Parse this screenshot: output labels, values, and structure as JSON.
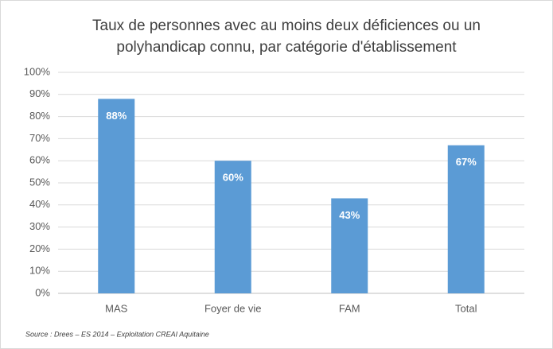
{
  "chart_data": {
    "type": "bar",
    "title": [
      "Taux de personnes avec au moins deux déficiences ou un",
      "polyhandicap connu, par catégorie d'établissement"
    ],
    "categories": [
      "MAS",
      "Foyer de vie",
      "FAM",
      "Total"
    ],
    "values": [
      88,
      60,
      43,
      67
    ],
    "value_labels": [
      "88%",
      "60%",
      "43%",
      "67%"
    ],
    "color": "#5b9bd5",
    "ylim": [
      0,
      100
    ],
    "yticks": [
      {
        "value": 0,
        "label": "0%"
      },
      {
        "value": 10,
        "label": "10%"
      },
      {
        "value": 20,
        "label": "20%"
      },
      {
        "value": 30,
        "label": "30%"
      },
      {
        "value": 40,
        "label": "40%"
      },
      {
        "value": 50,
        "label": "50%"
      },
      {
        "value": 60,
        "label": "60%"
      },
      {
        "value": 70,
        "label": "70%"
      },
      {
        "value": 80,
        "label": "80%"
      },
      {
        "value": 90,
        "label": "90%"
      },
      {
        "value": 100,
        "label": "100%"
      }
    ],
    "grid": true,
    "source": "Source : Drees – ES 2014 – Exploitation CREAI Aquitaine"
  }
}
